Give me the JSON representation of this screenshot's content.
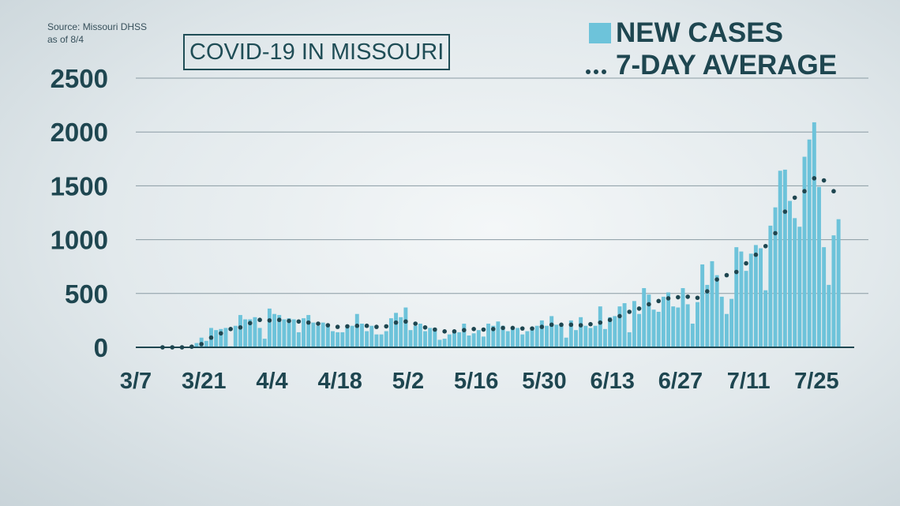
{
  "source": {
    "line1": "Source: Missouri DHSS",
    "line2": "as of 8/4"
  },
  "title": "COVID-19 IN MISSOURI",
  "legend": {
    "new_cases_label": "NEW CASES",
    "avg_label": "7-DAY AVERAGE"
  },
  "colors": {
    "bar": "#6dc3da",
    "dots": "#1e4650",
    "grid": "#8a9ba3",
    "axis": "#1e4650"
  },
  "chart_data": {
    "type": "bar",
    "x_start": "3/7",
    "x_tick_labels": [
      "3/7",
      "3/21",
      "4/4",
      "4/18",
      "5/2",
      "5/16",
      "5/30",
      "6/13",
      "6/27",
      "7/11",
      "7/25"
    ],
    "x_tick_step_days": 14,
    "y_tick_labels": [
      "0",
      "500",
      "1000",
      "1500",
      "2000",
      "2500"
    ],
    "ylim": [
      0,
      2500
    ],
    "grid": true,
    "legend_position": "top-right",
    "series": [
      {
        "name": "NEW CASES",
        "type": "bar",
        "values": [
          0,
          0,
          0,
          0,
          0,
          0,
          0,
          0,
          0,
          0,
          0,
          20,
          40,
          90,
          60,
          180,
          160,
          170,
          180,
          10,
          200,
          300,
          260,
          260,
          280,
          180,
          80,
          360,
          310,
          300,
          260,
          270,
          260,
          140,
          270,
          300,
          230,
          200,
          230,
          210,
          150,
          140,
          140,
          190,
          200,
          310,
          220,
          150,
          200,
          120,
          120,
          150,
          270,
          320,
          280,
          370,
          160,
          200,
          220,
          150,
          180,
          180,
          70,
          80,
          120,
          160,
          140,
          220,
          110,
          130,
          160,
          100,
          220,
          200,
          240,
          200,
          150,
          180,
          180,
          120,
          150,
          170,
          200,
          250,
          200,
          290,
          210,
          200,
          90,
          250,
          160,
          280,
          200,
          180,
          200,
          380,
          170,
          280,
          290,
          380,
          410,
          140,
          430,
          310,
          550,
          490,
          350,
          330,
          470,
          510,
          380,
          370,
          550,
          400,
          220,
          420,
          770,
          580,
          800,
          670,
          470,
          310,
          450,
          930,
          890,
          710,
          870,
          950,
          920,
          530,
          1130,
          1300,
          1640,
          1650,
          1360,
          1200,
          1120,
          1770,
          1930,
          2090,
          1490,
          930,
          580,
          1040,
          1190
        ]
      },
      {
        "name": "7-DAY AVERAGE",
        "type": "line-dotted",
        "values": [
          null,
          null,
          null,
          null,
          null,
          0,
          0,
          0,
          0,
          0,
          0,
          6,
          14,
          30,
          60,
          90,
          110,
          130,
          150,
          170,
          175,
          185,
          200,
          225,
          250,
          255,
          250,
          250,
          255,
          255,
          250,
          245,
          240,
          240,
          235,
          230,
          225,
          220,
          212,
          205,
          195,
          190,
          190,
          195,
          200,
          200,
          200,
          200,
          195,
          190,
          185,
          195,
          210,
          230,
          245,
          240,
          230,
          220,
          200,
          185,
          170,
          165,
          150,
          148,
          145,
          148,
          152,
          160,
          165,
          170,
          172,
          165,
          165,
          170,
          175,
          180,
          180,
          180,
          180,
          175,
          175,
          175,
          182,
          190,
          200,
          210,
          210,
          210,
          210,
          210,
          205,
          205,
          210,
          215,
          220,
          230,
          240,
          255,
          270,
          290,
          320,
          330,
          345,
          360,
          380,
          400,
          420,
          430,
          445,
          455,
          460,
          465,
          470,
          470,
          460,
          460,
          480,
          520,
          580,
          630,
          660,
          670,
          680,
          700,
          740,
          780,
          820,
          860,
          900,
          940,
          990,
          1060,
          1160,
          1260,
          1340,
          1390,
          1420,
          1450,
          1500,
          1570,
          1590,
          1550,
          1510,
          1450,
          1390
        ]
      }
    ]
  }
}
